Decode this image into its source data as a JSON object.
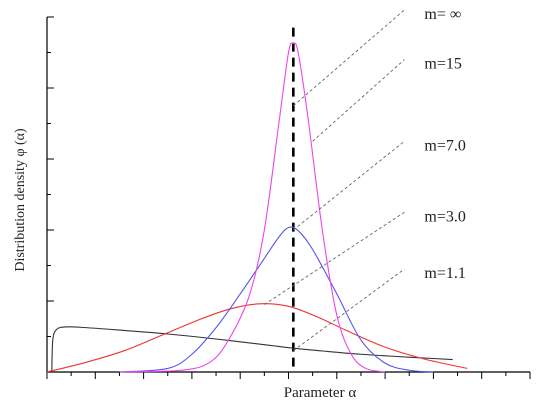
{
  "chart_data": {
    "type": "line",
    "title": "",
    "xlabel": "Parameter α",
    "ylabel": "Distribution density φ (α)",
    "xlim": [
      0,
      10
    ],
    "ylim": [
      0,
      10
    ],
    "grid": false,
    "axes_style": "ticks only, no numeric tick labels",
    "x_ticks": [
      0,
      0.5,
      1,
      1.5,
      2,
      2.5,
      3,
      3.5,
      4,
      4.5,
      5,
      5.5,
      6,
      6.5,
      7,
      7.5,
      8,
      8.5,
      9,
      9.5,
      10
    ],
    "x_major_ticks": [
      0,
      1,
      2,
      3,
      4,
      5,
      6,
      7,
      8,
      9,
      10
    ],
    "y_ticks": [
      0,
      1,
      2,
      3,
      4,
      5,
      6,
      7,
      8,
      9,
      10
    ],
    "y_major_ticks": [
      0,
      2,
      4,
      6,
      8,
      10
    ],
    "center_line": {
      "x": 5.1,
      "style": "dashed",
      "color": "#000000"
    },
    "series": [
      {
        "name": "m=1.1",
        "color": "#333333",
        "x": [
          0.1,
          0.12,
          0.2,
          0.4,
          0.8,
          1.5,
          2.5,
          3.5,
          4.5,
          5.1,
          5.8,
          6.5,
          7.2,
          8.0,
          8.4
        ],
        "values": [
          0,
          0.9,
          1.2,
          1.27,
          1.25,
          1.18,
          1.07,
          0.93,
          0.77,
          0.67,
          0.58,
          0.5,
          0.44,
          0.38,
          0.35
        ]
      },
      {
        "name": "m=3.0",
        "color": "#ee3333",
        "x": [
          0,
          0.8,
          1.6,
          2.4,
          3.2,
          3.8,
          4.4,
          5.0,
          5.6,
          6.2,
          7.0,
          7.8,
          8.7
        ],
        "values": [
          0,
          0.27,
          0.6,
          1.05,
          1.5,
          1.78,
          1.92,
          1.85,
          1.55,
          1.17,
          0.7,
          0.37,
          0.1
        ]
      },
      {
        "name": "m=7.0",
        "color": "#5555ee",
        "x": [
          1.5,
          2.5,
          3.0,
          3.5,
          4.0,
          4.5,
          4.8,
          5.0,
          5.2,
          5.5,
          6.0,
          6.5,
          7.0,
          7.5,
          8.0
        ],
        "values": [
          0,
          0.1,
          0.5,
          1.25,
          2.2,
          3.2,
          3.8,
          4.07,
          3.98,
          3.45,
          2.2,
          0.9,
          0.25,
          0.05,
          0
        ]
      },
      {
        "name": "m=15",
        "color": "#ee44ee",
        "x": [
          1.5,
          2.8,
          3.4,
          3.8,
          4.2,
          4.5,
          4.8,
          5.0,
          5.1,
          5.2,
          5.4,
          5.7,
          6.0,
          6.3,
          6.6,
          7.0
        ],
        "values": [
          0,
          0.05,
          0.3,
          1.0,
          2.2,
          4.0,
          7.0,
          9.0,
          9.25,
          9.0,
          7.2,
          4.0,
          1.6,
          0.5,
          0.1,
          0
        ]
      }
    ],
    "annotations": [
      {
        "text": "m= ∞",
        "anchor": {
          "x": 5.1,
          "y": 7.5
        },
        "label_pos": {
          "x": 7.4,
          "y": 10.2
        }
      },
      {
        "text": "m=15",
        "anchor": {
          "x": 5.5,
          "y": 6.5
        },
        "label_pos": {
          "x": 7.4,
          "y": 8.8
        }
      },
      {
        "text": "m=7.0",
        "anchor": {
          "x": 5.1,
          "y": 4.0
        },
        "label_pos": {
          "x": 7.4,
          "y": 6.5
        }
      },
      {
        "text": "m=3.0",
        "anchor": {
          "x": 4.5,
          "y": 1.9
        },
        "label_pos": {
          "x": 7.4,
          "y": 4.5
        }
      },
      {
        "text": "m=1.1",
        "anchor": {
          "x": 5.1,
          "y": 0.6
        },
        "label_pos": {
          "x": 7.4,
          "y": 2.9
        }
      }
    ]
  }
}
